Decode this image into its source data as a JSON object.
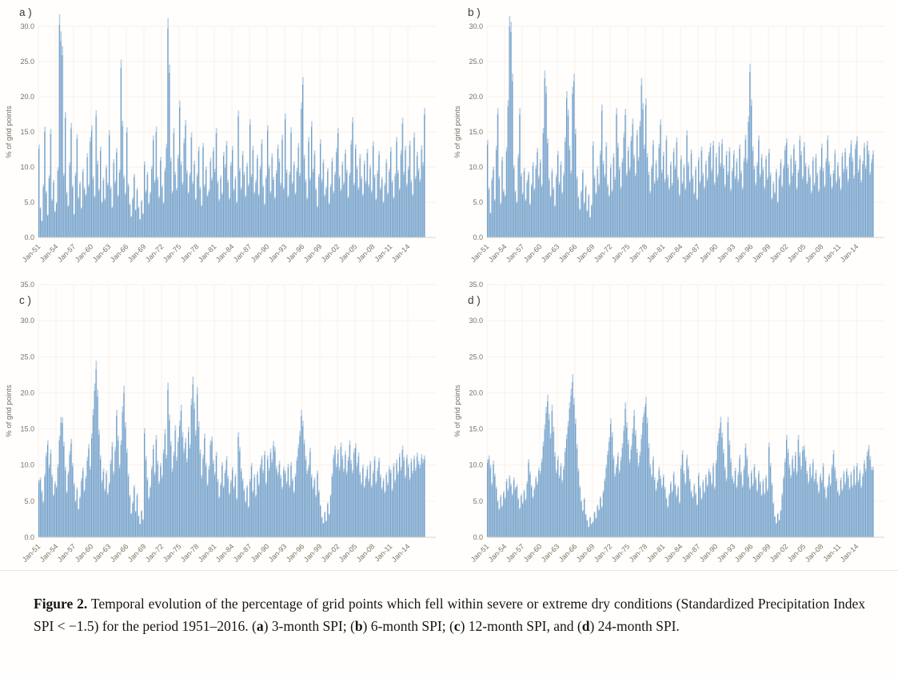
{
  "style": {
    "colors": {
      "bar": "#6d9cc7",
      "bar_light": "#bcd2e6",
      "grid": "#f7f0ea",
      "tick_text": "#7a6f63",
      "axis_line": "#d8d3cb",
      "panel_label_text": "#3a3a3a"
    }
  },
  "figure": {
    "caption_segments": [
      {
        "text": "Figure 2.",
        "bold": true
      },
      {
        "text": " Temporal evolution of the percentage of grid points which fell within severe or extreme dry conditions (Standardized Precipitation Index SPI < −1.5) for the period 1951–2016. (",
        "bold": false
      },
      {
        "text": "a",
        "bold": true
      },
      {
        "text": ") 3-month SPI; (",
        "bold": false
      },
      {
        "text": "b",
        "bold": true
      },
      {
        "text": ") 6-month SPI; (",
        "bold": false
      },
      {
        "text": "c",
        "bold": true
      },
      {
        "text": ") 12-month SPI, and (",
        "bold": false
      },
      {
        "text": "d",
        "bold": true
      },
      {
        "text": ") 24-month SPI.",
        "bold": false
      }
    ]
  },
  "chart_data": [
    {
      "id": "a",
      "panel_label": "a )",
      "type": "bar",
      "series_name": "3-month SPI",
      "ylabel": "% of grid points",
      "ylim": [
        0,
        30
      ],
      "ytick_labels": [
        "0.0",
        "5.0",
        "10.0",
        "15.0",
        "20.0",
        "25.0",
        "30.0"
      ],
      "xtick_labels": [
        "Jan-51",
        "Jan-54",
        "Jan-57",
        "Jan-60",
        "Jan-63",
        "Jan-66",
        "Jan-69",
        "Jan-72",
        "Jan-75",
        "Jan-78",
        "Jan-81",
        "Jan-84",
        "Jan-87",
        "Jan-90",
        "Jan-93",
        "Jan-96",
        "Jan-99",
        "Jan-02",
        "Jan-05",
        "Jan-08",
        "Jan-11",
        "Jan-14"
      ],
      "x_start": "Jan-1951",
      "x_end": "Dec-2016",
      "sampling": "quarterly (approximate values read from figure)",
      "values": [
        12.6,
        4.1,
        2.3,
        7.2,
        15.0,
        6.3,
        3.1,
        8.4,
        14.7,
        5.2,
        7.8,
        3.6,
        4.8,
        9.5,
        30.2,
        27.9,
        25.9,
        8.7,
        17.0,
        6.2,
        4.4,
        10.2,
        15.5,
        7.1,
        3.2,
        8.8,
        14.0,
        5.5,
        7.6,
        4.1,
        9.3,
        6.8,
        5.9,
        11.4,
        7.2,
        13.6,
        15.2,
        8.3,
        5.7,
        17.2,
        10.4,
        6.6,
        12.3,
        4.9,
        8.1,
        5.3,
        9.8,
        7.4,
        14.5,
        6.9,
        4.2,
        10.6,
        7.7,
        12.1,
        5.8,
        9.2,
        24.1,
        15.8,
        8.4,
        6.1,
        14.9,
        7.3,
        4.6,
        2.9,
        5.4,
        8.6,
        3.8,
        6.7,
        4.2,
        2.5,
        5.1,
        3.3,
        10.3,
        6.4,
        8.9,
        4.7,
        6.2,
        9.7,
        13.8,
        7.8,
        15.0,
        8.2,
        5.6,
        10.9,
        7.1,
        4.8,
        9.4,
        12.7,
        29.7,
        23.4,
        10.8,
        6.3,
        14.8,
        8.9,
        6.7,
        11.2,
        18.5,
        10.3,
        7.5,
        13.4,
        15.9,
        9.1,
        6.2,
        8.8,
        14.2,
        7.6,
        10.4,
        5.3,
        8.7,
        12.3,
        6.9,
        4.4,
        12.8,
        7.2,
        9.6,
        5.8,
        6.5,
        10.8,
        8.1,
        12.2,
        9.3,
        14.8,
        7.7,
        5.2,
        8.4,
        6.1,
        11.6,
        9.9,
        13.1,
        7.8,
        5.4,
        10.2,
        12.4,
        6.6,
        8.3,
        4.9,
        17.2,
        9.4,
        6.8,
        11.7,
        8.9,
        5.7,
        10.1,
        7.3,
        16.0,
        8.6,
        12.4,
        6.2,
        7.8,
        11.2,
        5.9,
        9.7,
        13.3,
        7.1,
        4.6,
        8.4,
        15.2,
        9.8,
        6.3,
        11.4,
        8.2,
        5.5,
        9.1,
        12.6,
        10.7,
        7.4,
        13.9,
        6.8,
        16.8,
        9.2,
        5.7,
        8.9,
        14.9,
        7.6,
        10.3,
        6.1,
        9.4,
        12.8,
        8.7,
        18.3,
        21.7,
        11.2,
        7.9,
        5.4,
        13.6,
        8.1,
        15.7,
        9.3,
        11.8,
        6.7,
        4.3,
        8.6,
        13.3,
        7.9,
        10.6,
        5.8,
        6.9,
        9.4,
        4.7,
        7.2,
        10.8,
        6.3,
        8.9,
        12.1,
        14.8,
        8.4,
        6.6,
        10.3,
        7.5,
        11.9,
        9.2,
        5.6,
        8.8,
        13.2,
        16.3,
        7.4,
        12.6,
        9.7,
        6.8,
        11.3,
        8.3,
        5.9,
        10.4,
        7.7,
        12.0,
        7.2,
        9.8,
        6.4,
        13.0,
        8.5,
        5.3,
        9.1,
        11.7,
        6.8,
        8.2,
        4.9,
        7.4,
        10.6,
        6.1,
        9.3,
        12.2,
        7.8,
        5.5,
        8.7,
        13.6,
        9.1,
        6.7,
        11.8,
        16.2,
        8.9,
        12.4,
        7.3,
        9.6,
        13.1,
        7.8,
        5.9,
        14.2,
        8.3,
        11.6,
        9.4,
        7.9,
        12.5,
        10.2,
        17.5
      ]
    },
    {
      "id": "b",
      "panel_label": "b )",
      "type": "bar",
      "series_name": "6-month SPI",
      "ylabel": "% of grid points",
      "ylim": [
        0,
        30
      ],
      "ytick_labels": [
        "0.0",
        "5.0",
        "10.0",
        "15.0",
        "20.0",
        "25.0",
        "30.0"
      ],
      "xtick_labels": [
        "Jan-51",
        "Jan-54",
        "Jan-57",
        "Jan-60",
        "Jan-63",
        "Jan-66",
        "Jan-69",
        "Jan-72",
        "Jan-75",
        "Jan-78",
        "Jan-81",
        "Jan-84",
        "Jan-87",
        "Jan-90",
        "Jan-93",
        "Jan-96",
        "Jan-99",
        "Jan-02",
        "Jan-05",
        "Jan-08",
        "Jan-11",
        "Jan-14"
      ],
      "x_start": "Jan-1951",
      "x_end": "Dec-2016",
      "sampling": "quarterly (approximate values read from figure)",
      "values": [
        13.2,
        6.8,
        3.4,
        8.1,
        9.6,
        5.2,
        12.4,
        17.5,
        8.3,
        4.7,
        10.9,
        6.5,
        5.8,
        12.2,
        18.6,
        30.0,
        29.2,
        22.2,
        9.8,
        6.4,
        4.9,
        11.3,
        17.5,
        8.7,
        6.1,
        9.4,
        5.2,
        7.8,
        8.9,
        4.6,
        7.3,
        10.2,
        6.7,
        9.8,
        12.1,
        8.4,
        10.6,
        7.2,
        14.8,
        22.6,
        20.5,
        13.4,
        8.1,
        5.7,
        9.3,
        6.8,
        4.4,
        8.6,
        11.7,
        7.5,
        10.3,
        6.2,
        8.8,
        13.6,
        19.8,
        17.3,
        12.4,
        9.1,
        20.4,
        22.2,
        14.7,
        8.3,
        5.6,
        3.9,
        6.4,
        9.2,
        4.8,
        7.1,
        3.7,
        5.9,
        2.8,
        4.5,
        13.0,
        8.4,
        6.1,
        9.7,
        7.3,
        11.8,
        18.0,
        10.4,
        8.6,
        12.9,
        7.2,
        5.8,
        9.9,
        6.5,
        11.4,
        8.2,
        17.5,
        12.8,
        9.6,
        6.9,
        10.7,
        14.2,
        17.4,
        8.8,
        12.3,
        9.5,
        13.7,
        16.1,
        11.2,
        8.7,
        14.5,
        10.9,
        15.8,
        21.6,
        18.2,
        12.6,
        18.8,
        11.4,
        8.9,
        6.3,
        9.8,
        13.2,
        7.6,
        10.5,
        8.1,
        12.7,
        16.0,
        9.2,
        11.6,
        7.9,
        13.8,
        8.5,
        6.8,
        10.3,
        7.4,
        12.1,
        9.7,
        13.5,
        8.2,
        5.9,
        11.1,
        7.6,
        9.9,
        6.7,
        14.5,
        10.2,
        7.8,
        11.9,
        8.4,
        6.1,
        9.6,
        5.3,
        10.9,
        7.7,
        12.3,
        8.8,
        6.9,
        10.4,
        8.1,
        11.6,
        12.8,
        9.3,
        13.1,
        7.5,
        11.4,
        8.6,
        12.9,
        10.1,
        13.3,
        9.8,
        7.2,
        11.7,
        8.9,
        12.2,
        6.6,
        9.4,
        11.8,
        8.3,
        10.7,
        7.9,
        12.6,
        9.1,
        6.8,
        10.8,
        13.9,
        10.6,
        16.4,
        23.5,
        18.7,
        12.3,
        9.7,
        7.4,
        10.2,
        13.8,
        8.6,
        11.3,
        9.5,
        6.9,
        11.1,
        8.2,
        12.0,
        8.8,
        5.4,
        7.6,
        6.2,
        9.3,
        4.9,
        8.4,
        10.6,
        7.1,
        9.8,
        12.4,
        13.4,
        9.9,
        7.3,
        11.2,
        8.7,
        12.6,
        10.4,
        6.8,
        9.2,
        13.8,
        11.7,
        8.3,
        12.9,
        10.1,
        7.6,
        9.8,
        8.5,
        6.3,
        10.9,
        7.4,
        11.3,
        8.8,
        6.5,
        9.6,
        12.7,
        9.4,
        7.1,
        10.7,
        13.8,
        10.3,
        8.6,
        6.9,
        9.1,
        11.9,
        7.7,
        10.2,
        8.3,
        6.7,
        11.5,
        9.3,
        12.1,
        9.6,
        7.9,
        11.4,
        13.2,
        10.8,
        8.4,
        12.6,
        13.7,
        9.2,
        11.1,
        7.8,
        10.4,
        12.8,
        9.7,
        13.1,
        11.8,
        8.9,
        10.6,
        11.8
      ]
    },
    {
      "id": "c",
      "panel_label": "c )",
      "type": "bar",
      "series_name": "12-month SPI",
      "ylabel": "% of grid points",
      "ylim": [
        0,
        35
      ],
      "ytick_labels": [
        "0.0",
        "5.0",
        "10.0",
        "15.0",
        "20.0",
        "25.0",
        "30.0",
        "35.0"
      ],
      "xtick_labels": [
        "Jan-51",
        "Jan-54",
        "Jan-57",
        "Jan-60",
        "Jan-63",
        "Jan-66",
        "Jan-69",
        "Jan-72",
        "Jan-75",
        "Jan-78",
        "Jan-81",
        "Jan-84",
        "Jan-87",
        "Jan-90",
        "Jan-93",
        "Jan-96",
        "Jan-99",
        "Jan-02",
        "Jan-05",
        "Jan-08",
        "Jan-11",
        "Jan-14"
      ],
      "x_start": "Jan-1951",
      "x_end": "Dec-2016",
      "sampling": "quarterly (approximate values read from figure)",
      "values": [
        7.6,
        7.9,
        6.2,
        4.8,
        8.4,
        11.2,
        12.8,
        9.6,
        11.6,
        8.3,
        5.7,
        7.4,
        6.8,
        9.7,
        13.4,
        15.9,
        15.8,
        12.6,
        9.3,
        6.1,
        8.7,
        11.4,
        13.0,
        9.8,
        7.2,
        4.9,
        6.6,
        3.8,
        5.4,
        7.8,
        9.2,
        6.3,
        8.1,
        10.6,
        12.3,
        9.4,
        13.7,
        16.9,
        20.3,
        23.3,
        19.5,
        14.2,
        10.8,
        7.6,
        9.1,
        6.4,
        8.8,
        5.9,
        7.3,
        10.2,
        12.6,
        8.7,
        11.9,
        16.8,
        13.4,
        9.6,
        12.8,
        17.3,
        20.0,
        15.2,
        11.7,
        8.4,
        5.6,
        3.2,
        4.7,
        6.9,
        3.5,
        5.8,
        2.9,
        1.8,
        3.6,
        2.4,
        14.4,
        10.7,
        7.9,
        5.3,
        6.8,
        9.4,
        12.2,
        8.6,
        13.5,
        10.1,
        7.4,
        9.8,
        8.2,
        11.6,
        14.3,
        10.9,
        20.4,
        16.2,
        12.7,
        9.1,
        11.3,
        14.8,
        10.6,
        13.2,
        15.4,
        17.5,
        13.9,
        11.7,
        13.1,
        10.4,
        14.6,
        12.3,
        18.3,
        21.2,
        17.8,
        14.1,
        19.8,
        15.3,
        11.6,
        8.2,
        10.9,
        13.7,
        9.8,
        7.1,
        9.4,
        12.8,
        13.3,
        10.2,
        8.6,
        11.3,
        7.7,
        5.4,
        7.2,
        9.9,
        6.8,
        8.9,
        10.7,
        8.1,
        5.9,
        7.6,
        9.3,
        6.7,
        8.4,
        5.2,
        13.9,
        11.9,
        9.1,
        7.8,
        6.4,
        4.8,
        6.9,
        4.1,
        7.7,
        9.8,
        6.2,
        8.3,
        5.6,
        8.7,
        7.1,
        9.6,
        10.8,
        8.9,
        11.4,
        7.3,
        10.8,
        9.2,
        11.7,
        10.3,
        12.7,
        11.9,
        9.4,
        8.6,
        10.1,
        8.2,
        6.7,
        9.3,
        8.8,
        7.4,
        9.7,
        6.9,
        9.9,
        7.8,
        6.1,
        8.4,
        10.6,
        12.3,
        14.0,
        16.8,
        15.4,
        12.9,
        10.7,
        8.8,
        9.6,
        11.8,
        8.3,
        6.7,
        7.9,
        5.6,
        8.8,
        6.2,
        4.3,
        2.7,
        1.9,
        3.4,
        2.2,
        4.6,
        3.1,
        5.7,
        8.4,
        10.9,
        12.1,
        9.7,
        11.6,
        9.3,
        12.5,
        10.8,
        9.1,
        11.4,
        8.7,
        10.6,
        12.8,
        10.2,
        8.9,
        11.7,
        12.4,
        9.8,
        11.2,
        8.6,
        7.3,
        9.6,
        6.8,
        8.1,
        9.4,
        7.7,
        10.1,
        6.9,
        8.8,
        10.7,
        7.4,
        9.2,
        10.5,
        8.3,
        6.6,
        7.8,
        6.1,
        8.6,
        7.2,
        9.4,
        8.9,
        6.4,
        9.8,
        7.6,
        10.3,
        8.7,
        11.1,
        9.3,
        12.1,
        10.6,
        8.2,
        10.9,
        9.7,
        7.9,
        10.4,
        8.8,
        10.8,
        9.2,
        11.2,
        10.1,
        9.6,
        11.0,
        10.3,
        10.8
      ]
    },
    {
      "id": "d",
      "panel_label": "d )",
      "type": "bar",
      "series_name": "24-month SPI",
      "ylabel": "% of grid points",
      "ylim": [
        0,
        35
      ],
      "ytick_labels": [
        "0.0",
        "5.0",
        "10.0",
        "15.0",
        "20.0",
        "25.0",
        "30.0",
        "35.0"
      ],
      "xtick_labels": [
        "Jan-51",
        "Jan-54",
        "Jan-57",
        "Jan-60",
        "Jan-63",
        "Jan-66",
        "Jan-69",
        "Jan-72",
        "Jan-75",
        "Jan-78",
        "Jan-81",
        "Jan-84",
        "Jan-87",
        "Jan-90",
        "Jan-93",
        "Jan-96",
        "Jan-99",
        "Jan-02",
        "Jan-05",
        "Jan-08",
        "Jan-11",
        "Jan-14"
      ],
      "x_start": "Jan-1951",
      "x_end": "Dec-2016",
      "sampling": "quarterly (approximate values read from figure)",
      "values": [
        10.3,
        10.8,
        9.6,
        7.2,
        10.1,
        8.4,
        6.7,
        4.9,
        3.8,
        5.6,
        4.2,
        6.1,
        5.3,
        7.7,
        6.4,
        8.2,
        7.1,
        5.8,
        7.9,
        6.6,
        7.0,
        5.2,
        3.9,
        5.7,
        4.6,
        6.3,
        5.1,
        7.4,
        10.3,
        8.7,
        6.9,
        5.4,
        6.6,
        8.1,
        7.3,
        9.2,
        8.8,
        10.4,
        12.6,
        14.9,
        17.2,
        18.8,
        16.3,
        13.7,
        17.5,
        14.6,
        11.2,
        8.9,
        10.7,
        8.2,
        9.8,
        7.6,
        9.4,
        11.8,
        13.6,
        15.3,
        17.8,
        19.6,
        21.5,
        18.4,
        15.7,
        12.3,
        9.1,
        6.8,
        4.9,
        3.6,
        5.2,
        3.1,
        2.3,
        1.4,
        2.7,
        1.8,
        2.1,
        3.4,
        2.6,
        4.3,
        3.7,
        5.4,
        4.1,
        6.2,
        7.8,
        9.6,
        11.4,
        13.2,
        15.7,
        13.9,
        10.8,
        8.4,
        9.7,
        11.2,
        8.9,
        10.6,
        12.4,
        14.7,
        17.8,
        15.2,
        12.9,
        10.3,
        12.1,
        14.4,
        16.8,
        14.1,
        11.7,
        9.8,
        11.3,
        13.6,
        15.9,
        17.2,
        18.5,
        15.8,
        12.4,
        9.7,
        8.3,
        10.7,
        7.9,
        6.4,
        7.6,
        9.3,
        8.1,
        6.9,
        8.3,
        6.7,
        5.3,
        4.1,
        5.8,
        7.4,
        6.2,
        8.7,
        7.1,
        5.6,
        6.8,
        4.7,
        9.5,
        11.5,
        8.8,
        7.3,
        10.9,
        9.4,
        7.7,
        6.2,
        5.4,
        7.1,
        5.9,
        4.4,
        8.5,
        6.8,
        5.2,
        7.6,
        6.1,
        8.3,
        7.0,
        9.1,
        8.6,
        7.2,
        9.8,
        6.7,
        10.2,
        12.7,
        14.4,
        15.9,
        13.8,
        11.6,
        9.3,
        7.8,
        15.9,
        12.8,
        10.4,
        8.1,
        7.4,
        9.2,
        6.8,
        8.6,
        10.9,
        8.7,
        6.9,
        9.4,
        12.4,
        10.8,
        8.3,
        6.6,
        8.9,
        7.1,
        9.7,
        7.9,
        6.3,
        8.8,
        7.4,
        5.7,
        7.7,
        5.9,
        8.2,
        6.4,
        12.5,
        9.8,
        7.2,
        4.6,
        2.8,
        1.9,
        3.2,
        2.3,
        3.6,
        5.8,
        8.1,
        10.4,
        13.5,
        11.7,
        9.6,
        8.2,
        10.8,
        9.1,
        11.3,
        8.7,
        13.5,
        11.2,
        9.4,
        12.0,
        12.1,
        10.6,
        8.8,
        7.4,
        9.7,
        8.2,
        10.3,
        7.7,
        8.9,
        7.3,
        6.1,
        8.4,
        7.6,
        9.8,
        6.7,
        5.3,
        6.9,
        8.4,
        7.1,
        9.6,
        11.5,
        9.3,
        7.8,
        6.2,
        5.7,
        7.9,
        6.4,
        8.8,
        7.3,
        9.1,
        8.2,
        6.6,
        8.7,
        6.9,
        9.4,
        7.2,
        9.8,
        7.6,
        8.9,
        6.8,
        8.4,
        10.2,
        9.1,
        11.3,
        12.2,
        10.7,
        9.3,
        9.3
      ]
    }
  ]
}
